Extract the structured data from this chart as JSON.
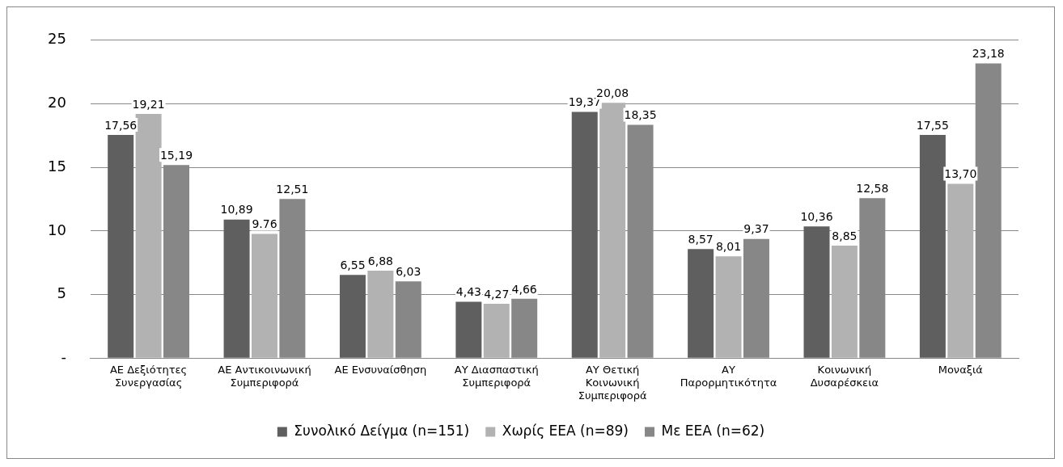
{
  "chart_data": {
    "type": "bar",
    "categories": [
      "ΑΕ Δεξιότητες\nΣυνεργασίας",
      "ΑΕ Αντικοινωνική\nΣυμπεριφορά",
      "ΑΕ Ενσυναίσθηση",
      "ΑΥ Διασπαστική\nΣυμπεριφορά",
      "ΑΥ Θετική\nΚοινωνική\nΣυμπεριφορά",
      "ΑΥ\nΠαρορμητικότητα",
      "Κοινωνική\nΔυσαρέσκεια",
      "Μοναξιά"
    ],
    "series": [
      {
        "name": "Συνολικό Δείγμα (n=151)",
        "color": "#5f5f5f",
        "values": [
          17.56,
          10.89,
          6.55,
          4.43,
          19.37,
          8.57,
          10.36,
          17.55
        ],
        "value_labels": [
          "17,56",
          "10,89",
          "6,55",
          "4,43",
          "19,37",
          "8,57",
          "10,36",
          "17,55"
        ]
      },
      {
        "name": "Χωρίς ΕΕΑ (n=89)",
        "color": "#b2b2b2",
        "values": [
          19.21,
          9.76,
          6.88,
          4.27,
          20.08,
          8.01,
          8.85,
          13.7
        ],
        "value_labels": [
          "19,21",
          "9.76",
          "6,88",
          "4,27",
          "20,08",
          "8,01",
          "8,85",
          "13,70"
        ]
      },
      {
        "name": "Με ΕΕΑ (n=62)",
        "color": "#878787",
        "values": [
          15.19,
          12.51,
          6.03,
          4.66,
          18.35,
          9.37,
          12.58,
          23.18
        ],
        "value_labels": [
          "15,19",
          "12,51",
          "6,03",
          "4,66",
          "18,35",
          "9,37",
          "12,58",
          "23,18"
        ]
      }
    ],
    "ylim": [
      0,
      25
    ],
    "yticks": [
      {
        "value": 0,
        "label": "-"
      },
      5,
      10,
      15,
      20,
      25
    ],
    "grid": "y",
    "legend": "bottom"
  }
}
